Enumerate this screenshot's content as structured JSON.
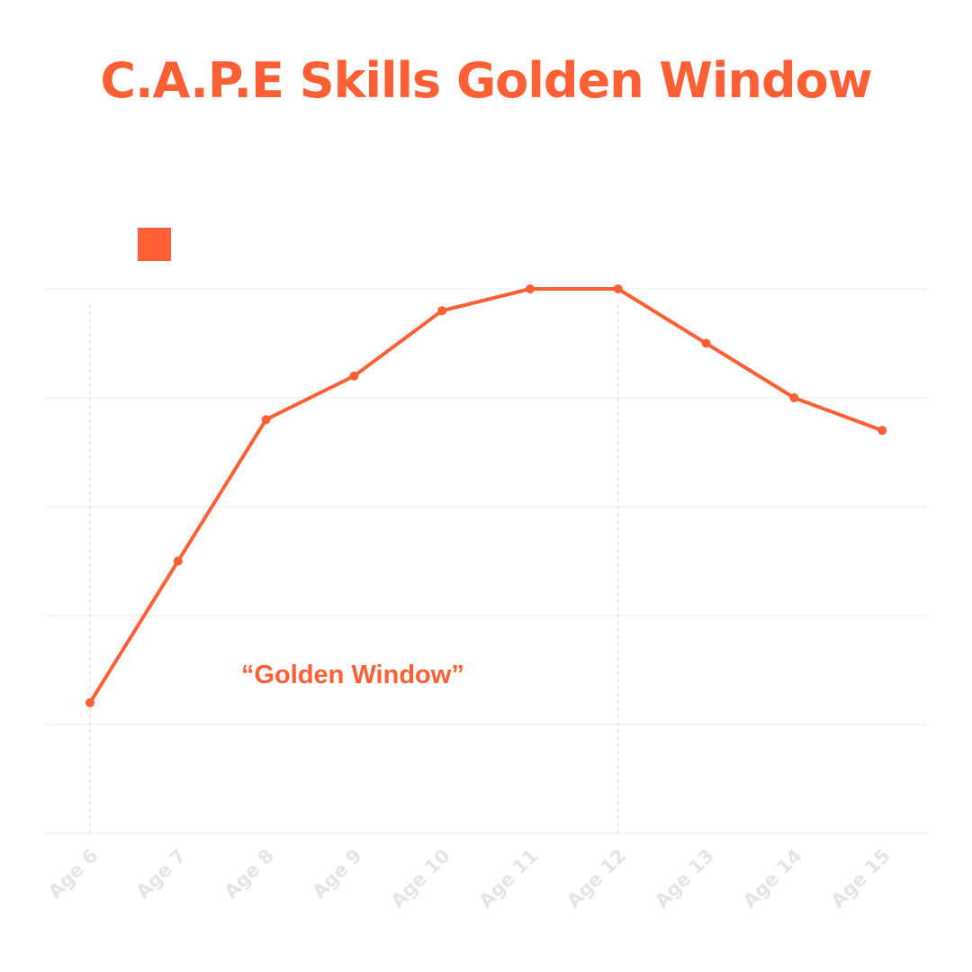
{
  "chart_data": {
    "type": "line",
    "title": "C.A.P.E Skills Golden Window",
    "annotation": "“Golden Window”",
    "categories": [
      "Age 6",
      "Age 7",
      "Age 8",
      "Age 9",
      "Age 10",
      "Age 11",
      "Age 12",
      "Age 13",
      "Age 14",
      "Age 15"
    ],
    "series": [
      {
        "values": [
          1.2,
          2.5,
          3.8,
          4.2,
          4.8,
          5.0,
          5.0,
          4.5,
          4.0,
          3.7
        ]
      }
    ],
    "ylim": [
      0,
      5
    ],
    "grid": true,
    "legend": "top-left",
    "highlight_range": [
      "Age 6",
      "Age 12"
    ],
    "colors": {
      "line": "#ff5f34",
      "grid": "#efefef",
      "tick_label": "#e4e4e4",
      "title": "#ff5f34"
    }
  }
}
